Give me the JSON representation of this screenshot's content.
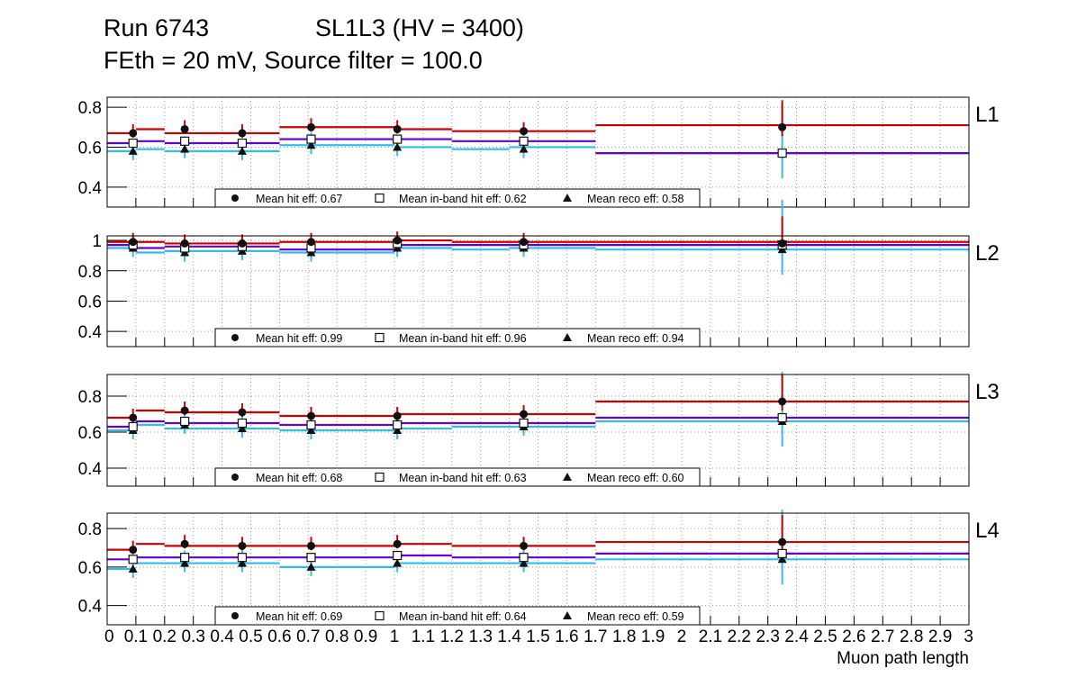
{
  "header": {
    "run": "Run 6743",
    "chamber": "SL1L3 (HV = 3400)",
    "settings": "FEth = 20 mV, Source filter = 100.0"
  },
  "colors": {
    "hit": "#cc0000",
    "inband": "#6600cc",
    "reco": "#33bbee",
    "marker": "#111111"
  },
  "chart_data": {
    "type": "scatter",
    "xlabel": "Muon path length",
    "xlim": [
      0,
      3
    ],
    "x_ticks": [
      "0",
      "0.1",
      "0.2",
      "0.3",
      "0.4",
      "0.5",
      "0.6",
      "0.7",
      "0.8",
      "0.9",
      "1",
      "1.1",
      "1.2",
      "1.3",
      "1.4",
      "1.5",
      "1.6",
      "1.7",
      "1.8",
      "1.9",
      "2",
      "2.1",
      "2.2",
      "2.3",
      "2.4",
      "2.5",
      "2.6",
      "2.7",
      "2.8",
      "2.9",
      "3"
    ],
    "bins": [
      [
        0,
        0.1
      ],
      [
        0.1,
        0.2
      ],
      [
        0.2,
        0.3
      ],
      [
        0.3,
        0.6
      ],
      [
        0.6,
        1.0
      ],
      [
        1.0,
        1.2
      ],
      [
        1.2,
        1.4
      ],
      [
        1.4,
        1.7
      ],
      [
        1.7,
        3.0
      ]
    ],
    "points_x": [
      0.09,
      0.27,
      0.47,
      0.71,
      1.01,
      1.45,
      2.35
    ],
    "legend": [
      "Mean hit  eff:",
      "Mean in-band hit eff:",
      "Mean reco eff:"
    ],
    "panels": [
      {
        "label": "L1",
        "ylim": [
          0.3,
          0.85
        ],
        "yticks": [
          "0.4",
          "0.6",
          "0.8"
        ],
        "hit_bins": [
          0.67,
          0.69,
          0.67,
          0.67,
          0.7,
          0.69,
          0.68,
          0.68,
          0.71
        ],
        "inband_bins": [
          0.62,
          0.63,
          0.62,
          0.62,
          0.64,
          0.64,
          0.63,
          0.63,
          0.57
        ],
        "reco_bins": [
          0.58,
          0.59,
          0.58,
          0.58,
          0.61,
          0.6,
          0.59,
          0.6,
          0.57
        ],
        "hit_points": [
          0.67,
          0.69,
          0.67,
          0.7,
          0.69,
          0.68,
          0.7
        ],
        "inband_points": [
          0.62,
          0.63,
          0.62,
          0.64,
          0.64,
          0.63,
          0.57
        ],
        "reco_points": [
          0.58,
          0.59,
          0.58,
          0.61,
          0.6,
          0.59,
          0.57
        ],
        "mean_hit": "0.67",
        "mean_inband": "0.62",
        "mean_reco": "0.58"
      },
      {
        "label": "L2",
        "ylim": [
          0.3,
          1.03
        ],
        "yticks": [
          "0.4",
          "0.6",
          "0.8",
          "1"
        ],
        "hit_bins": [
          0.99,
          0.99,
          0.98,
          0.98,
          0.99,
          1.0,
          0.99,
          0.99,
          0.99
        ],
        "inband_bins": [
          0.97,
          0.95,
          0.96,
          0.96,
          0.94,
          0.97,
          0.97,
          0.97,
          0.97
        ],
        "reco_bins": [
          0.95,
          0.92,
          0.93,
          0.93,
          0.92,
          0.95,
          0.94,
          0.95,
          0.94
        ],
        "hit_points": [
          0.99,
          0.98,
          0.98,
          0.99,
          1.0,
          0.99,
          0.98
        ],
        "inband_points": [
          0.97,
          0.95,
          0.96,
          0.95,
          0.98,
          0.97,
          0.97
        ],
        "reco_points": [
          0.95,
          0.92,
          0.93,
          0.92,
          0.95,
          0.95,
          0.94
        ],
        "mean_hit": "0.99",
        "mean_inband": "0.96",
        "mean_reco": "0.94"
      },
      {
        "label": "L3",
        "ylim": [
          0.3,
          0.92
        ],
        "yticks": [
          "0.4",
          "0.6",
          "0.8"
        ],
        "hit_bins": [
          0.68,
          0.72,
          0.71,
          0.71,
          0.69,
          0.7,
          0.7,
          0.7,
          0.77
        ],
        "inband_bins": [
          0.63,
          0.66,
          0.65,
          0.65,
          0.64,
          0.65,
          0.65,
          0.65,
          0.68
        ],
        "reco_bins": [
          0.61,
          0.64,
          0.62,
          0.62,
          0.61,
          0.62,
          0.63,
          0.63,
          0.66
        ],
        "hit_points": [
          0.68,
          0.72,
          0.71,
          0.69,
          0.69,
          0.7,
          0.77
        ],
        "inband_points": [
          0.63,
          0.66,
          0.65,
          0.64,
          0.64,
          0.65,
          0.68
        ],
        "reco_points": [
          0.61,
          0.64,
          0.62,
          0.61,
          0.61,
          0.63,
          0.66
        ],
        "mean_hit": "0.68",
        "mean_inband": "0.63",
        "mean_reco": "0.60"
      },
      {
        "label": "L4",
        "ylim": [
          0.3,
          0.88
        ],
        "yticks": [
          "0.4",
          "0.6",
          "0.8"
        ],
        "hit_bins": [
          0.69,
          0.72,
          0.71,
          0.71,
          0.71,
          0.72,
          0.71,
          0.71,
          0.73
        ],
        "inband_bins": [
          0.64,
          0.65,
          0.65,
          0.65,
          0.65,
          0.66,
          0.65,
          0.65,
          0.67
        ],
        "reco_bins": [
          0.59,
          0.62,
          0.62,
          0.62,
          0.6,
          0.62,
          0.62,
          0.62,
          0.64
        ],
        "hit_points": [
          0.69,
          0.72,
          0.71,
          0.71,
          0.72,
          0.71,
          0.73
        ],
        "inband_points": [
          0.64,
          0.65,
          0.65,
          0.65,
          0.66,
          0.65,
          0.67
        ],
        "reco_points": [
          0.59,
          0.62,
          0.62,
          0.6,
          0.62,
          0.62,
          0.64
        ],
        "mean_hit": "0.69",
        "mean_inband": "0.64",
        "mean_reco": "0.59"
      }
    ]
  }
}
